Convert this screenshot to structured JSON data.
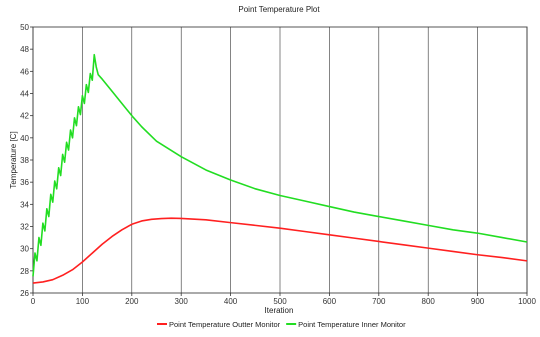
{
  "chart_data": {
    "type": "line",
    "title": "Point Temperature Plot",
    "xlabel": "Iteration",
    "ylabel": "Temperature [C]",
    "xlim": [
      0,
      1000
    ],
    "ylim": [
      26,
      50
    ],
    "xticks": [
      0,
      100,
      200,
      300,
      400,
      500,
      600,
      700,
      800,
      900,
      1000
    ],
    "yticks": [
      26,
      28,
      30,
      32,
      34,
      36,
      38,
      40,
      42,
      44,
      46,
      48,
      50
    ],
    "grid": true,
    "legend_position": "bottom",
    "series": [
      {
        "name": "Point Temperature Outter Monitor",
        "color": "#ff2020",
        "points": [
          [
            0,
            26.9
          ],
          [
            20,
            27.0
          ],
          [
            40,
            27.2
          ],
          [
            60,
            27.6
          ],
          [
            80,
            28.1
          ],
          [
            100,
            28.8
          ],
          [
            120,
            29.6
          ],
          [
            140,
            30.4
          ],
          [
            160,
            31.1
          ],
          [
            180,
            31.7
          ],
          [
            200,
            32.2
          ],
          [
            220,
            32.5
          ],
          [
            240,
            32.65
          ],
          [
            260,
            32.72
          ],
          [
            280,
            32.75
          ],
          [
            300,
            32.73
          ],
          [
            350,
            32.6
          ],
          [
            400,
            32.35
          ],
          [
            450,
            32.1
          ],
          [
            500,
            31.85
          ],
          [
            550,
            31.55
          ],
          [
            600,
            31.25
          ],
          [
            650,
            30.95
          ],
          [
            700,
            30.65
          ],
          [
            750,
            30.35
          ],
          [
            800,
            30.05
          ],
          [
            850,
            29.75
          ],
          [
            900,
            29.45
          ],
          [
            950,
            29.2
          ],
          [
            1000,
            28.9
          ]
        ]
      },
      {
        "name": "Point Temperature Inner Monitor",
        "color": "#22dd22",
        "points": [
          [
            0,
            27.5
          ],
          [
            4,
            29.6
          ],
          [
            8,
            28.9
          ],
          [
            12,
            31.0
          ],
          [
            16,
            30.3
          ],
          [
            20,
            32.3
          ],
          [
            24,
            31.6
          ],
          [
            28,
            33.6
          ],
          [
            32,
            32.9
          ],
          [
            36,
            34.9
          ],
          [
            40,
            34.2
          ],
          [
            44,
            36.1
          ],
          [
            48,
            35.4
          ],
          [
            52,
            37.3
          ],
          [
            56,
            36.6
          ],
          [
            60,
            38.5
          ],
          [
            64,
            37.8
          ],
          [
            68,
            39.6
          ],
          [
            72,
            38.9
          ],
          [
            76,
            40.7
          ],
          [
            80,
            40.0
          ],
          [
            84,
            41.8
          ],
          [
            88,
            41.1
          ],
          [
            92,
            42.8
          ],
          [
            96,
            42.1
          ],
          [
            100,
            43.8
          ],
          [
            104,
            43.1
          ],
          [
            108,
            44.8
          ],
          [
            112,
            44.1
          ],
          [
            116,
            45.8
          ],
          [
            120,
            45.2
          ],
          [
            124,
            47.5
          ],
          [
            128,
            46.4
          ],
          [
            132,
            45.7
          ],
          [
            140,
            45.3
          ],
          [
            160,
            44.2
          ],
          [
            180,
            43.1
          ],
          [
            200,
            42.0
          ],
          [
            220,
            41.0
          ],
          [
            250,
            39.7
          ],
          [
            300,
            38.3
          ],
          [
            350,
            37.1
          ],
          [
            400,
            36.2
          ],
          [
            450,
            35.4
          ],
          [
            500,
            34.8
          ],
          [
            550,
            34.3
          ],
          [
            600,
            33.8
          ],
          [
            650,
            33.3
          ],
          [
            700,
            32.9
          ],
          [
            750,
            32.5
          ],
          [
            800,
            32.1
          ],
          [
            850,
            31.7
          ],
          [
            900,
            31.4
          ],
          [
            950,
            31.0
          ],
          [
            1000,
            30.6
          ]
        ]
      }
    ]
  }
}
